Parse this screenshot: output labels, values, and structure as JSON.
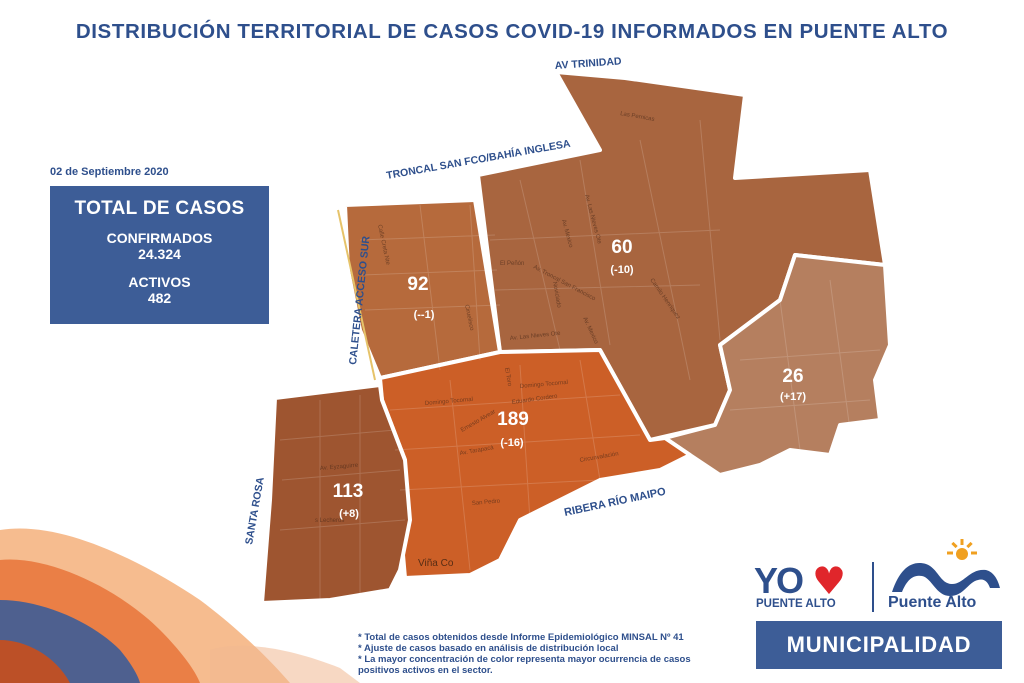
{
  "title": "DISTRIBUCIÓN TERRITORIAL DE CASOS COVID-19 INFORMADOS EN PUENTE ALTO",
  "date": "02 de Septiembre 2020",
  "totals": {
    "heading": "TOTAL DE CASOS",
    "confirmed_label": "CONFIRMADOS",
    "confirmed_value": "24.324",
    "active_label": "ACTIVOS",
    "active_value": "482"
  },
  "roads": {
    "av_trinidad": "AV TRINIDAD",
    "troncal": "TRONCAL SAN FCO/BAHÍA INGLESA",
    "caletera": "CALETERA ACCESO SUR",
    "santa_rosa": "SANTA ROSA",
    "ribera": "RIBERA RÍO MAIPO"
  },
  "sectors": [
    {
      "id": "north-west",
      "cases": "92",
      "change": "(--1)",
      "color": "#b66a3c"
    },
    {
      "id": "north-central",
      "cases": "60",
      "change": "(-10)",
      "color": "#a8653f"
    },
    {
      "id": "east",
      "cases": "26",
      "change": "(+17)",
      "color": "#b57f5f"
    },
    {
      "id": "central",
      "cases": "189",
      "change": "(-16)",
      "color": "#cc5f27"
    },
    {
      "id": "south-west",
      "cases": "113",
      "change": "(+8)",
      "color": "#9e5530"
    }
  ],
  "street_labels": [
    "Las Pernicas",
    "Av. Las Nieves Ote",
    "Av. Mexico",
    "El Peñón",
    "Av. Troncal San Francisco",
    "Noviciado",
    "Camilo Henríquez",
    "Calle Creta Nte",
    "Ciruelisco",
    "Av. Las Nieves Ote",
    "Av. Mexico",
    "El Toro",
    "Domingo Tocornal",
    "Domingo Tocornal",
    "Ernesto Alvear",
    "Eduardo Cordero",
    "Av. Tarapacá",
    "Circunvalación",
    "San Pedro",
    "Av. Eyzaguirre",
    "s Lecheros",
    "Viña Co"
  ],
  "notes": [
    "* Total de casos obtenidos desde Informe Epidemiológico MINSAL Nº 41",
    "* Ajuste de casos basado en análisis de distribución local",
    "* La mayor concentración de color representa mayor ocurrencia de casos",
    "  positivos activos en el sector."
  ],
  "logos": {
    "yo_text": "YO",
    "yo_sub": "PUENTE ALTO",
    "pa_name": "Puente Alto",
    "municipalidad": "MUNICIPALIDAD"
  }
}
